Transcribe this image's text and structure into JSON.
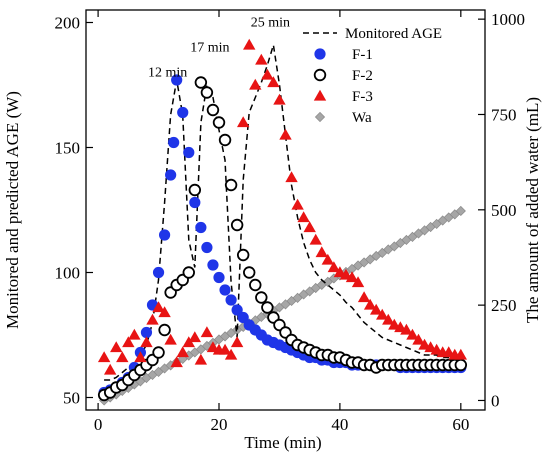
{
  "chart_data": {
    "type": "scatter",
    "xlabel": "Time (min)",
    "ylabel_left": "Monitored and predicted AGE (W)",
    "ylabel_right": "The amount of added water (mL)",
    "xlim": [
      -2,
      64
    ],
    "ylim_left": [
      45,
      205
    ],
    "ylim_right": [
      -25,
      1024
    ],
    "x_ticks": [
      0,
      20,
      40,
      60
    ],
    "y_left_ticks": [
      50,
      100,
      150,
      200
    ],
    "y_right_ticks": [
      0,
      250,
      500,
      750,
      1000
    ],
    "grid": false,
    "legend_position": "top-right",
    "annotations": [
      {
        "text": "12 min",
        "x": 11.5,
        "y": 180
      },
      {
        "text": "17 min",
        "x": 18.5,
        "y": 190
      },
      {
        "text": "25 min",
        "x": 28.5,
        "y": 200
      }
    ],
    "series": [
      {
        "name": "Monitored AGE",
        "style": "dashed-line",
        "color": "#000000",
        "axis": "left",
        "points": [
          [
            1,
            57
          ],
          [
            2,
            57
          ],
          [
            3,
            58
          ],
          [
            4,
            60
          ],
          [
            5,
            62
          ],
          [
            6,
            64
          ],
          [
            7,
            67
          ],
          [
            8,
            71
          ],
          [
            9,
            80
          ],
          [
            10,
            97
          ],
          [
            11,
            128
          ],
          [
            12,
            163
          ],
          [
            13,
            177
          ],
          [
            14,
            163
          ],
          [
            15,
            113
          ],
          [
            16,
            102
          ],
          [
            17,
            160
          ],
          [
            18,
            175
          ],
          [
            19,
            170
          ],
          [
            20,
            157
          ],
          [
            21,
            145
          ],
          [
            22,
            96
          ],
          [
            23,
            74
          ],
          [
            24,
            137
          ],
          [
            25,
            164
          ],
          [
            26,
            170
          ],
          [
            27,
            176
          ],
          [
            28,
            183
          ],
          [
            29,
            191
          ],
          [
            30,
            175
          ],
          [
            31,
            155
          ],
          [
            32,
            135
          ],
          [
            33,
            122
          ],
          [
            34,
            112
          ],
          [
            35,
            105
          ],
          [
            36,
            100
          ],
          [
            37,
            97
          ],
          [
            38,
            95
          ],
          [
            39,
            93
          ],
          [
            40,
            91
          ],
          [
            41,
            88
          ],
          [
            42,
            86
          ],
          [
            43,
            83
          ],
          [
            44,
            80
          ],
          [
            45,
            78
          ],
          [
            46,
            76
          ],
          [
            47,
            74
          ],
          [
            48,
            73
          ],
          [
            49,
            72
          ],
          [
            50,
            71
          ],
          [
            51,
            70
          ],
          [
            52,
            69
          ],
          [
            53,
            68
          ],
          [
            54,
            67
          ],
          [
            55,
            67
          ],
          [
            56,
            67
          ],
          [
            57,
            66
          ],
          [
            58,
            66
          ],
          [
            59,
            66
          ],
          [
            60,
            67
          ]
        ]
      },
      {
        "name": "F-1",
        "marker": "filled-circle",
        "color": "#1f35e8",
        "axis": "left",
        "points": [
          [
            1,
            52
          ],
          [
            2,
            53
          ],
          [
            3,
            54
          ],
          [
            4,
            56
          ],
          [
            5,
            58
          ],
          [
            6,
            62
          ],
          [
            7,
            68
          ],
          [
            8,
            76
          ],
          [
            9,
            87
          ],
          [
            10,
            100
          ],
          [
            11,
            115
          ],
          [
            12,
            139
          ],
          [
            12.5,
            152
          ],
          [
            13,
            177
          ],
          [
            14,
            164
          ],
          [
            15,
            148
          ],
          [
            16,
            128
          ],
          [
            17,
            118
          ],
          [
            18,
            110
          ],
          [
            19,
            103
          ],
          [
            20,
            98
          ],
          [
            21,
            93
          ],
          [
            22,
            89
          ],
          [
            23,
            85
          ],
          [
            24,
            82
          ],
          [
            25,
            79
          ],
          [
            26,
            77
          ],
          [
            27,
            75
          ],
          [
            28,
            73
          ],
          [
            29,
            72
          ],
          [
            30,
            71
          ],
          [
            31,
            70
          ],
          [
            32,
            69
          ],
          [
            33,
            68
          ],
          [
            34,
            67
          ],
          [
            35,
            66
          ],
          [
            36,
            66
          ],
          [
            37,
            65
          ],
          [
            38,
            65
          ],
          [
            39,
            64
          ],
          [
            40,
            64
          ],
          [
            41,
            64
          ],
          [
            42,
            63
          ],
          [
            43,
            63
          ],
          [
            44,
            63
          ],
          [
            45,
            63
          ],
          [
            46,
            63
          ],
          [
            47,
            63
          ],
          [
            48,
            63
          ],
          [
            49,
            63
          ],
          [
            50,
            62
          ],
          [
            51,
            62
          ],
          [
            52,
            62
          ],
          [
            53,
            62
          ],
          [
            54,
            62
          ],
          [
            55,
            62
          ],
          [
            56,
            62
          ],
          [
            57,
            62
          ],
          [
            58,
            62
          ],
          [
            59,
            62
          ],
          [
            60,
            62
          ]
        ]
      },
      {
        "name": "F-2",
        "marker": "open-circle",
        "color": "#000000",
        "axis": "left",
        "points": [
          [
            1,
            51
          ],
          [
            2,
            52
          ],
          [
            3,
            54
          ],
          [
            4,
            55
          ],
          [
            5,
            57
          ],
          [
            6,
            59
          ],
          [
            7,
            61
          ],
          [
            8,
            63
          ],
          [
            9,
            65
          ],
          [
            10,
            68
          ],
          [
            11,
            77
          ],
          [
            12,
            92
          ],
          [
            13,
            95
          ],
          [
            14,
            97
          ],
          [
            15,
            100
          ],
          [
            16,
            133
          ],
          [
            17,
            176
          ],
          [
            18,
            172
          ],
          [
            19,
            165
          ],
          [
            20,
            160
          ],
          [
            21,
            153
          ],
          [
            22,
            135
          ],
          [
            23,
            119
          ],
          [
            24,
            107
          ],
          [
            25,
            100
          ],
          [
            26,
            95
          ],
          [
            27,
            90
          ],
          [
            28,
            86
          ],
          [
            29,
            82
          ],
          [
            30,
            79
          ],
          [
            31,
            76
          ],
          [
            32,
            73
          ],
          [
            33,
            71
          ],
          [
            34,
            70
          ],
          [
            35,
            69
          ],
          [
            36,
            68
          ],
          [
            37,
            67
          ],
          [
            38,
            67
          ],
          [
            39,
            66
          ],
          [
            40,
            66
          ],
          [
            41,
            65
          ],
          [
            42,
            64
          ],
          [
            43,
            64
          ],
          [
            44,
            63
          ],
          [
            45,
            63
          ],
          [
            46,
            62
          ],
          [
            47,
            63
          ],
          [
            48,
            63
          ],
          [
            49,
            63
          ],
          [
            50,
            63
          ],
          [
            51,
            63
          ],
          [
            52,
            63
          ],
          [
            53,
            63
          ],
          [
            54,
            63
          ],
          [
            55,
            63
          ],
          [
            56,
            63
          ],
          [
            57,
            63
          ],
          [
            58,
            63
          ],
          [
            59,
            63
          ],
          [
            60,
            63
          ]
        ]
      },
      {
        "name": "F-3",
        "marker": "filled-triangle",
        "color": "#e81414",
        "axis": "left",
        "points": [
          [
            1,
            66
          ],
          [
            2,
            61
          ],
          [
            3,
            70
          ],
          [
            4,
            66
          ],
          [
            5,
            72
          ],
          [
            6,
            75
          ],
          [
            7,
            66
          ],
          [
            8,
            72
          ],
          [
            9,
            81
          ],
          [
            10,
            86
          ],
          [
            11,
            84
          ],
          [
            12,
            73
          ],
          [
            13,
            64
          ],
          [
            14,
            68
          ],
          [
            15,
            72
          ],
          [
            16,
            74
          ],
          [
            17,
            65
          ],
          [
            18,
            76
          ],
          [
            19,
            70
          ],
          [
            20,
            69
          ],
          [
            21,
            69
          ],
          [
            22,
            67
          ],
          [
            23,
            72
          ],
          [
            24,
            160
          ],
          [
            25,
            191
          ],
          [
            26,
            175
          ],
          [
            27,
            185
          ],
          [
            28,
            179
          ],
          [
            29,
            176
          ],
          [
            30,
            169
          ],
          [
            31,
            155
          ],
          [
            32,
            138
          ],
          [
            33,
            127
          ],
          [
            34,
            122
          ],
          [
            35,
            118
          ],
          [
            36,
            113
          ],
          [
            37,
            108
          ],
          [
            38,
            105
          ],
          [
            39,
            102
          ],
          [
            40,
            100
          ],
          [
            41,
            99
          ],
          [
            42,
            98
          ],
          [
            43,
            96
          ],
          [
            44,
            90
          ],
          [
            45,
            87
          ],
          [
            46,
            85
          ],
          [
            47,
            83
          ],
          [
            48,
            81
          ],
          [
            49,
            79
          ],
          [
            50,
            78
          ],
          [
            51,
            77
          ],
          [
            52,
            75
          ],
          [
            53,
            73
          ],
          [
            54,
            71
          ],
          [
            55,
            70
          ],
          [
            56,
            69
          ],
          [
            57,
            68
          ],
          [
            58,
            68
          ],
          [
            59,
            67
          ],
          [
            60,
            67
          ]
        ]
      },
      {
        "name": "Wa",
        "marker": "diamond",
        "color": "#a6a6a6",
        "axis": "right",
        "points": [
          [
            1,
            0
          ],
          [
            2,
            8
          ],
          [
            3,
            16
          ],
          [
            4,
            25
          ],
          [
            5,
            33
          ],
          [
            6,
            42
          ],
          [
            7,
            50
          ],
          [
            8,
            59
          ],
          [
            9,
            67
          ],
          [
            10,
            75
          ],
          [
            11,
            84
          ],
          [
            12,
            92
          ],
          [
            13,
            101
          ],
          [
            14,
            109
          ],
          [
            15,
            118
          ],
          [
            16,
            126
          ],
          [
            17,
            134
          ],
          [
            18,
            143
          ],
          [
            19,
            151
          ],
          [
            20,
            160
          ],
          [
            21,
            168
          ],
          [
            22,
            177
          ],
          [
            23,
            185
          ],
          [
            24,
            193
          ],
          [
            25,
            202
          ],
          [
            26,
            210
          ],
          [
            27,
            219
          ],
          [
            28,
            227
          ],
          [
            29,
            236
          ],
          [
            30,
            244
          ],
          [
            31,
            252
          ],
          [
            32,
            261
          ],
          [
            33,
            269
          ],
          [
            34,
            278
          ],
          [
            35,
            286
          ],
          [
            36,
            295
          ],
          [
            37,
            303
          ],
          [
            38,
            311
          ],
          [
            39,
            320
          ],
          [
            40,
            328
          ],
          [
            41,
            337
          ],
          [
            42,
            345
          ],
          [
            43,
            354
          ],
          [
            44,
            362
          ],
          [
            45,
            370
          ],
          [
            46,
            379
          ],
          [
            47,
            387
          ],
          [
            48,
            396
          ],
          [
            49,
            404
          ],
          [
            50,
            413
          ],
          [
            51,
            421
          ],
          [
            52,
            429
          ],
          [
            53,
            438
          ],
          [
            54,
            446
          ],
          [
            55,
            455
          ],
          [
            56,
            463
          ],
          [
            57,
            472
          ],
          [
            58,
            480
          ],
          [
            59,
            488
          ],
          [
            60,
            497
          ]
        ]
      }
    ]
  }
}
